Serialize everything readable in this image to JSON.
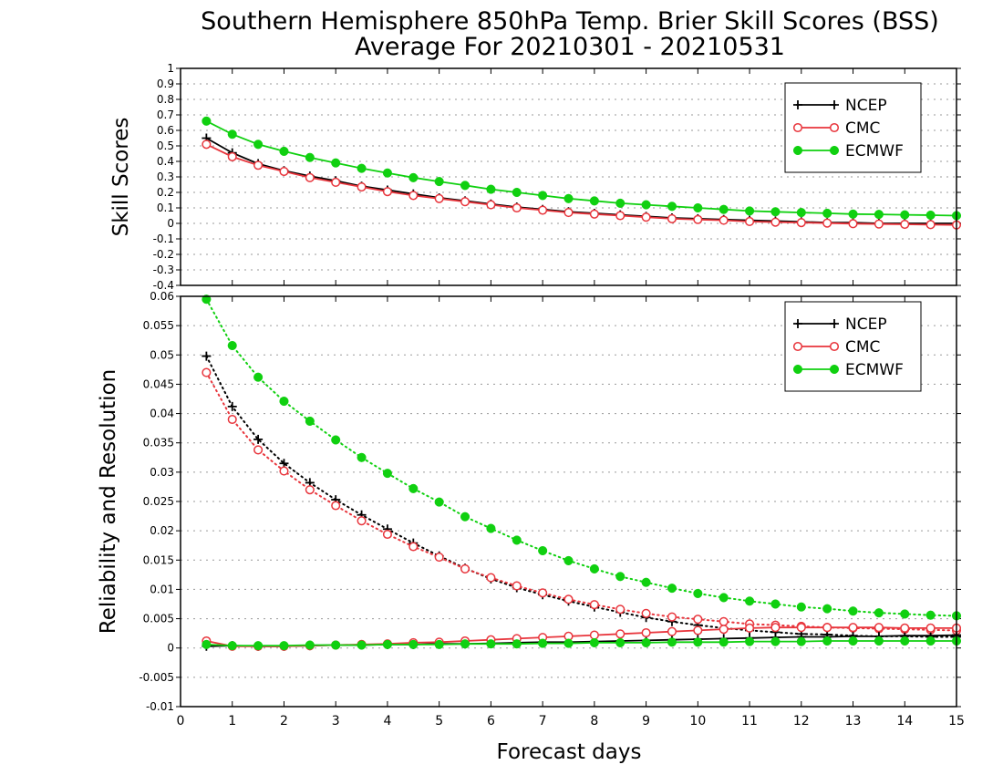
{
  "chart_data": {
    "title_line1": "Southern Hemisphere 850hPa Temp. Brier Skill Scores (BSS)",
    "title_line2": "Average For 20210301 - 20210531",
    "xlabel": "Forecast days",
    "xlim": [
      0,
      15
    ],
    "x_ticks": [
      "0",
      "1",
      "2",
      "3",
      "4",
      "5",
      "6",
      "7",
      "8",
      "9",
      "10",
      "11",
      "12",
      "13",
      "14",
      "15"
    ],
    "colors": {
      "NCEP": "#000000",
      "CMC": "#e8353c",
      "ECMWF": "#10d010"
    },
    "x": [
      0.5,
      1,
      1.5,
      2,
      2.5,
      3,
      3.5,
      4,
      4.5,
      5,
      5.5,
      6,
      6.5,
      7,
      7.5,
      8,
      8.5,
      9,
      9.5,
      10,
      10.5,
      11,
      11.5,
      12,
      12.5,
      13,
      13.5,
      14,
      14.5,
      15
    ],
    "panels": [
      {
        "type": "line",
        "ylabel": "Skill Scores",
        "ylim": [
          -0.4,
          1
        ],
        "y_ticks": [
          "1",
          "0.9",
          "0.8",
          "0.7",
          "0.6",
          "0.5",
          "0.4",
          "0.3",
          "0.2",
          "0.1",
          "0",
          "-0.1",
          "-0.2",
          "-0.3",
          "-0.4"
        ],
        "legend": [
          "NCEP",
          "CMC",
          "ECMWF"
        ],
        "series": [
          {
            "name": "NCEP",
            "style": "solid",
            "marker": "plus",
            "values": [
              0.55,
              0.455,
              0.385,
              0.34,
              0.305,
              0.275,
              0.24,
              0.215,
              0.19,
              0.165,
              0.145,
              0.125,
              0.105,
              0.09,
              0.075,
              0.065,
              0.055,
              0.045,
              0.035,
              0.03,
              0.025,
              0.02,
              0.015,
              0.01,
              0.005,
              0.005,
              0.0,
              0.0,
              0.0,
              0.0
            ]
          },
          {
            "name": "CMC",
            "style": "solid",
            "marker": "circle-open",
            "values": [
              0.51,
              0.43,
              0.375,
              0.335,
              0.295,
              0.265,
              0.235,
              0.205,
              0.18,
              0.16,
              0.14,
              0.12,
              0.1,
              0.085,
              0.07,
              0.06,
              0.05,
              0.04,
              0.03,
              0.025,
              0.02,
              0.012,
              0.008,
              0.005,
              0.002,
              -0.002,
              -0.004,
              -0.006,
              -0.008,
              -0.01
            ]
          },
          {
            "name": "ECMWF",
            "style": "solid",
            "marker": "circle-filled",
            "values": [
              0.66,
              0.575,
              0.51,
              0.465,
              0.425,
              0.39,
              0.355,
              0.325,
              0.295,
              0.27,
              0.245,
              0.22,
              0.2,
              0.18,
              0.16,
              0.145,
              0.13,
              0.12,
              0.11,
              0.1,
              0.09,
              0.08,
              0.075,
              0.07,
              0.065,
              0.06,
              0.058,
              0.055,
              0.053,
              0.05
            ]
          }
        ]
      },
      {
        "type": "line",
        "ylabel": "Reliability and Resolution",
        "ylim": [
          -0.01,
          0.06
        ],
        "y_ticks": [
          "0.06",
          "0.055",
          "0.05",
          "0.045",
          "0.04",
          "0.035",
          "0.03",
          "0.025",
          "0.02",
          "0.015",
          "0.01",
          "0.005",
          "0",
          "-0.005",
          "-0.01"
        ],
        "legend": [
          "NCEP",
          "CMC",
          "ECMWF"
        ],
        "series": [
          {
            "name": "NCEP",
            "style": "dotted",
            "marker": "plus",
            "values": [
              0.0498,
              0.0412,
              0.0356,
              0.0315,
              0.0282,
              0.0253,
              0.0227,
              0.0203,
              0.0179,
              0.0157,
              0.0136,
              0.0118,
              0.0103,
              0.0091,
              0.008,
              0.007,
              0.0061,
              0.0052,
              0.0045,
              0.0039,
              0.0034,
              0.003,
              0.0027,
              0.0024,
              0.0023,
              0.0021,
              0.002,
              0.002,
              0.0019,
              0.0019
            ]
          },
          {
            "name": "CMC",
            "style": "dotted",
            "marker": "circle-open",
            "values": [
              0.047,
              0.039,
              0.0338,
              0.0302,
              0.027,
              0.0243,
              0.0217,
              0.0194,
              0.0173,
              0.0155,
              0.0135,
              0.012,
              0.0106,
              0.0094,
              0.0083,
              0.0074,
              0.0066,
              0.0059,
              0.0053,
              0.0049,
              0.0045,
              0.0041,
              0.0039,
              0.0037,
              0.0035,
              0.0034,
              0.0033,
              0.0032,
              0.0031,
              0.003
            ]
          },
          {
            "name": "ECMWF",
            "style": "dotted",
            "marker": "circle-filled",
            "values": [
              0.0595,
              0.0516,
              0.0462,
              0.0421,
              0.0387,
              0.0355,
              0.0325,
              0.0298,
              0.0272,
              0.0249,
              0.0224,
              0.0204,
              0.0184,
              0.0166,
              0.0149,
              0.0135,
              0.0122,
              0.0112,
              0.0102,
              0.0093,
              0.0086,
              0.008,
              0.0075,
              0.007,
              0.0067,
              0.0063,
              0.006,
              0.0058,
              0.0056,
              0.0055
            ]
          },
          {
            "name": "NCEP",
            "style": "solid",
            "marker": "plus",
            "values": [
              0.0003,
              0.0004,
              0.0003,
              0.0003,
              0.0004,
              0.0005,
              0.0005,
              0.0006,
              0.0006,
              0.0007,
              0.0007,
              0.0008,
              0.0009,
              0.001,
              0.001,
              0.0011,
              0.0012,
              0.0013,
              0.0014,
              0.0015,
              0.0016,
              0.0017,
              0.0018,
              0.0019,
              0.0019,
              0.002,
              0.002,
              0.0021,
              0.0021,
              0.0022
            ]
          },
          {
            "name": "CMC",
            "style": "solid",
            "marker": "circle-open",
            "values": [
              0.0012,
              0.0003,
              0.0003,
              0.0003,
              0.0004,
              0.0005,
              0.0006,
              0.0007,
              0.0009,
              0.001,
              0.0012,
              0.0014,
              0.0016,
              0.0018,
              0.002,
              0.0022,
              0.0024,
              0.0026,
              0.0028,
              0.003,
              0.0032,
              0.0034,
              0.0035,
              0.0035,
              0.0035,
              0.0035,
              0.0035,
              0.0034,
              0.0034,
              0.0034
            ]
          },
          {
            "name": "ECMWF",
            "style": "solid",
            "marker": "circle-filled",
            "values": [
              0.0006,
              0.0004,
              0.0004,
              0.0004,
              0.0005,
              0.0005,
              0.0005,
              0.0006,
              0.0006,
              0.0006,
              0.0007,
              0.0007,
              0.0007,
              0.0008,
              0.0008,
              0.0009,
              0.0009,
              0.0009,
              0.001,
              0.001,
              0.001,
              0.0011,
              0.0011,
              0.0011,
              0.0012,
              0.0012,
              0.0012,
              0.0012,
              0.0012,
              0.0012
            ]
          }
        ]
      }
    ]
  }
}
